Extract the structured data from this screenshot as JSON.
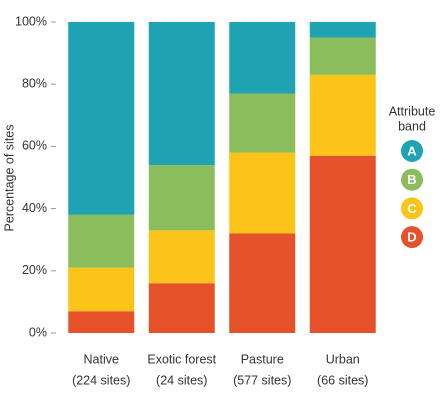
{
  "chart_data": {
    "type": "stacked_bar",
    "y_label": "Percentage of sites",
    "categories": [
      [
        "Native",
        "(224 sites)"
      ],
      [
        "Exotic forest",
        "(24 sites)"
      ],
      [
        "Pasture",
        "(577 sites)"
      ],
      [
        "Urban",
        "(66 sites)"
      ]
    ],
    "series": [
      {
        "name": "D",
        "color": "#e5522a",
        "values": [
          7,
          16,
          32,
          57
        ]
      },
      {
        "name": "C",
        "color": "#fcc418",
        "values": [
          14,
          17,
          26,
          26
        ]
      },
      {
        "name": "B",
        "color": "#8bbd5c",
        "values": [
          17,
          21,
          19,
          12
        ]
      },
      {
        "name": "A",
        "color": "#1fa3b2",
        "values": [
          62,
          46,
          23,
          5
        ]
      }
    ],
    "ylim": [
      0,
      100
    ],
    "yticks": [
      {
        "value": 0,
        "label": "0%"
      },
      {
        "value": 20,
        "label": "20%"
      },
      {
        "value": 40,
        "label": "40%"
      },
      {
        "value": 60,
        "label": "60%"
      },
      {
        "value": 80,
        "label": "80%"
      },
      {
        "value": 100,
        "label": "100%"
      }
    ],
    "legend_title": [
      "Attribute",
      "band"
    ],
    "legend_position": "right"
  }
}
